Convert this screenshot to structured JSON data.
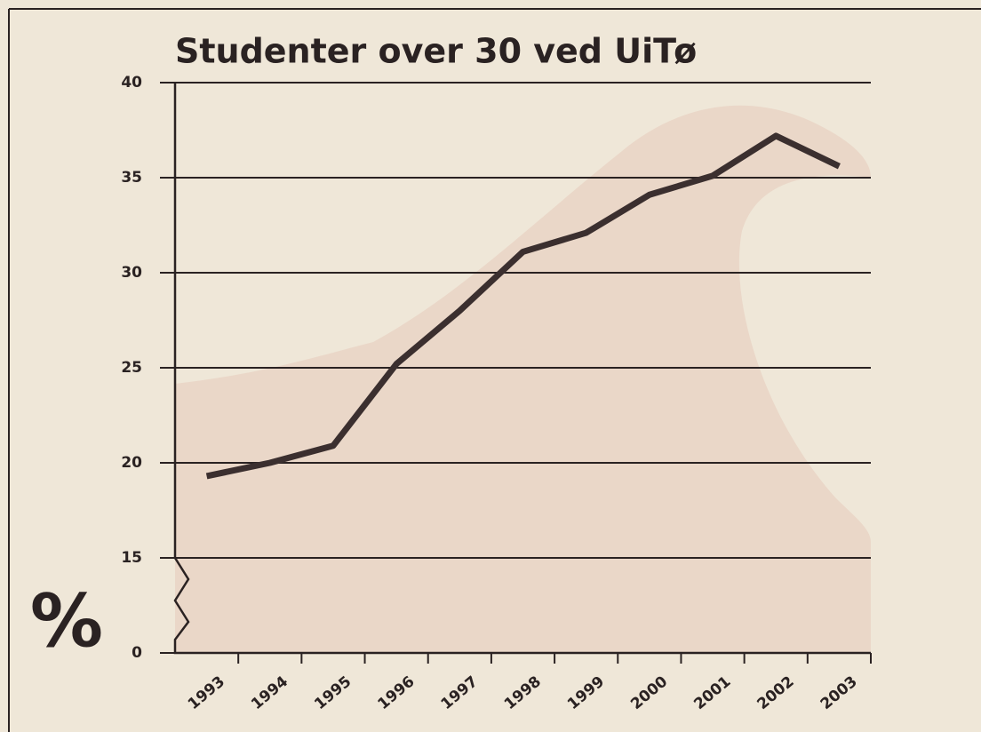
{
  "chart_data": {
    "type": "line",
    "title": "Studenter over 30 ved UiTø",
    "ylabel": "%",
    "categories": [
      "1993",
      "1994",
      "1995",
      "1996",
      "1997",
      "1998",
      "1999",
      "2000",
      "2001",
      "2002",
      "2003"
    ],
    "values": [
      19.3,
      20.0,
      20.9,
      25.2,
      28.0,
      31.1,
      32.1,
      34.1,
      35.1,
      37.2,
      35.6
    ],
    "color": "#3b2f2f",
    "ylim": [
      0,
      40
    ],
    "yticks": [
      0,
      15,
      20,
      25,
      30,
      35,
      40
    ],
    "y_break": [
      0,
      15
    ],
    "grid": true
  }
}
